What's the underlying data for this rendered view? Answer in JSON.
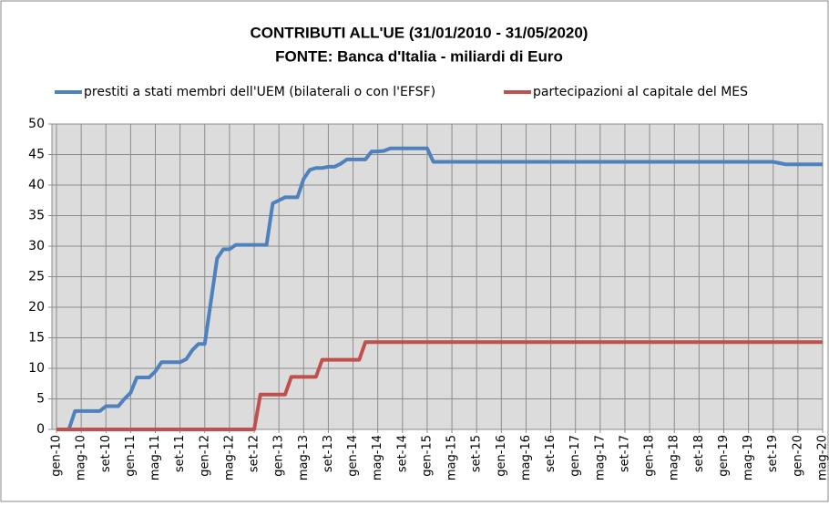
{
  "chart_data": {
    "type": "line",
    "title": "CONTRIBUTI ALL'UE (31/01/2010 - 31/05/2020)",
    "subtitle": "FONTE: Banca d'Italia - miliardi di Euro",
    "categories": [
      "gen-10",
      null,
      null,
      null,
      "mag-10",
      null,
      null,
      null,
      "set-10",
      null,
      null,
      null,
      "gen-11",
      null,
      null,
      null,
      "mag-11",
      null,
      null,
      null,
      "set-11",
      null,
      null,
      null,
      "gen-12",
      null,
      null,
      null,
      "mag-12",
      null,
      null,
      null,
      "set-12",
      null,
      null,
      null,
      "gen-13",
      null,
      null,
      null,
      "mag-13",
      null,
      null,
      null,
      "set-13",
      null,
      null,
      null,
      "gen-14",
      null,
      null,
      null,
      "mag-14",
      null,
      null,
      null,
      "set-14",
      null,
      null,
      null,
      "gen-15",
      null,
      null,
      null,
      "mag-15",
      null,
      null,
      null,
      "set-15",
      null,
      null,
      null,
      "gen-16",
      null,
      null,
      null,
      "mag-16",
      null,
      null,
      null,
      "set-16",
      null,
      null,
      null,
      "gen-17",
      null,
      null,
      null,
      "mag-17",
      null,
      null,
      null,
      "set-17",
      null,
      null,
      null,
      "gen-18",
      null,
      null,
      null,
      "mag-18",
      null,
      null,
      null,
      "set-18",
      null,
      null,
      null,
      "gen-19",
      null,
      null,
      null,
      "mag-19",
      null,
      null,
      null,
      "set-19",
      null,
      null,
      null,
      "gen-20",
      null,
      null,
      null,
      "mag-20"
    ],
    "series": [
      {
        "name": "prestiti a stati membri dell'UEM (bilaterali o con l'EFSF)",
        "color": "#4f81bd",
        "values": [
          0,
          0,
          0,
          3,
          3,
          3,
          3,
          3,
          3.8,
          3.8,
          3.8,
          5,
          6,
          8.5,
          8.5,
          8.5,
          9.5,
          11,
          11,
          11,
          11,
          11.5,
          13,
          14,
          14,
          21,
          28,
          29.5,
          29.5,
          30.2,
          30.2,
          30.2,
          30.2,
          30.2,
          30.2,
          37,
          37.5,
          38,
          38,
          38,
          41,
          42.5,
          42.8,
          42.8,
          43,
          43,
          43.5,
          44.2,
          44.2,
          44.2,
          44.2,
          45.5,
          45.5,
          45.6,
          46,
          46,
          46,
          46,
          46,
          46,
          46,
          43.8,
          43.8,
          43.8,
          43.8,
          43.8,
          43.8,
          43.8,
          43.8,
          43.8,
          43.8,
          43.8,
          43.8,
          43.8,
          43.8,
          43.8,
          43.8,
          43.8,
          43.8,
          43.8,
          43.8,
          43.8,
          43.8,
          43.8,
          43.8,
          43.8,
          43.8,
          43.8,
          43.8,
          43.8,
          43.8,
          43.8,
          43.8,
          43.8,
          43.8,
          43.8,
          43.8,
          43.8,
          43.8,
          43.8,
          43.8,
          43.8,
          43.8,
          43.8,
          43.8,
          43.8,
          43.8,
          43.8,
          43.8,
          43.8,
          43.8,
          43.8,
          43.8,
          43.8,
          43.8,
          43.8,
          43.8,
          43.6,
          43.4,
          43.4,
          43.4,
          43.4,
          43.4,
          43.4,
          43.4
        ]
      },
      {
        "name": "partecipazioni al capitale del MES",
        "color": "#c0504d",
        "values": [
          0,
          0,
          0,
          0,
          0,
          0,
          0,
          0,
          0,
          0,
          0,
          0,
          0,
          0,
          0,
          0,
          0,
          0,
          0,
          0,
          0,
          0,
          0,
          0,
          0,
          0,
          0,
          0,
          0,
          0,
          0,
          0,
          0,
          5.7,
          5.7,
          5.7,
          5.7,
          5.7,
          8.6,
          8.6,
          8.6,
          8.6,
          8.6,
          11.4,
          11.4,
          11.4,
          11.4,
          11.4,
          11.4,
          11.4,
          14.3,
          14.3,
          14.3,
          14.3,
          14.3,
          14.3,
          14.3,
          14.3,
          14.3,
          14.3,
          14.3,
          14.3,
          14.3,
          14.3,
          14.3,
          14.3,
          14.3,
          14.3,
          14.3,
          14.3,
          14.3,
          14.3,
          14.3,
          14.3,
          14.3,
          14.3,
          14.3,
          14.3,
          14.3,
          14.3,
          14.3,
          14.3,
          14.3,
          14.3,
          14.3,
          14.3,
          14.3,
          14.3,
          14.3,
          14.3,
          14.3,
          14.3,
          14.3,
          14.3,
          14.3,
          14.3,
          14.3,
          14.3,
          14.3,
          14.3,
          14.3,
          14.3,
          14.3,
          14.3,
          14.3,
          14.3,
          14.3,
          14.3,
          14.3,
          14.3,
          14.3,
          14.3,
          14.3,
          14.3,
          14.3,
          14.3,
          14.3,
          14.3,
          14.3,
          14.3,
          14.3,
          14.3,
          14.3,
          14.3,
          14.3
        ]
      }
    ],
    "ylim": [
      0,
      50
    ],
    "yticks": [
      0,
      5,
      10,
      15,
      20,
      25,
      30,
      35,
      40,
      45,
      50
    ],
    "grid": true,
    "legend": "top"
  }
}
